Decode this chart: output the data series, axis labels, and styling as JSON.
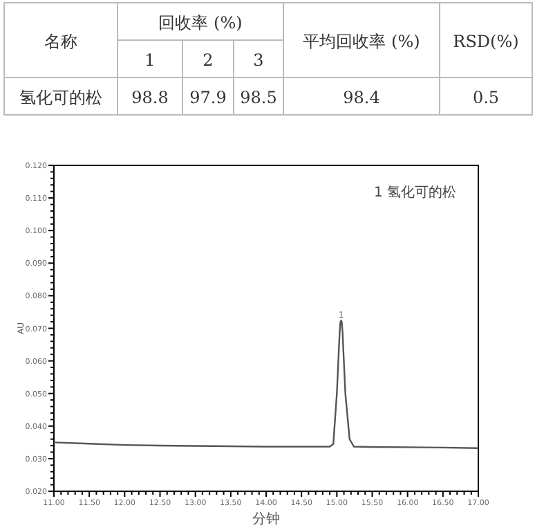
{
  "chart_data": [
    {
      "type": "other",
      "annotations": [
        "名称",
        "回收率 (%)",
        "平均回收率 (%)",
        "RSD(%)",
        "1",
        "2",
        "3",
        "氢化可的松",
        "98.8",
        "97.9",
        "98.5",
        "98.4",
        "0.5"
      ]
    },
    {
      "type": "line",
      "xlabel": "分钟",
      "ylabel": "AU",
      "xlim": [
        11,
        17
      ],
      "ylim": [
        0.02,
        0.12
      ],
      "xticks": [
        {
          "value": 11,
          "label": "11.00"
        },
        {
          "value": 11.5,
          "label": "11.50"
        },
        {
          "value": 12,
          "label": "12.00"
        },
        {
          "value": 12.5,
          "label": "12.50"
        },
        {
          "value": 13,
          "label": "13.00"
        },
        {
          "value": 13.5,
          "label": "13.50"
        },
        {
          "value": 14,
          "label": "14.00"
        },
        {
          "value": 14.5,
          "label": "14.50"
        },
        {
          "value": 15,
          "label": "15.00"
        },
        {
          "value": 15.5,
          "label": "15.50"
        },
        {
          "value": 16,
          "label": "16.00"
        },
        {
          "value": 16.5,
          "label": "16.50"
        },
        {
          "value": 17,
          "label": "17.00"
        }
      ],
      "yticks": [
        {
          "value": 0.02,
          "label": "0.020"
        },
        {
          "value": 0.03,
          "label": "0.030"
        },
        {
          "value": 0.04,
          "label": "0.040"
        },
        {
          "value": 0.05,
          "label": "0.050"
        },
        {
          "value": 0.06,
          "label": "0.060"
        },
        {
          "value": 0.07,
          "label": "0.070"
        },
        {
          "value": 0.08,
          "label": "0.080"
        },
        {
          "value": 0.09,
          "label": "0.090"
        },
        {
          "value": 0.1,
          "label": "0.100"
        },
        {
          "value": 0.11,
          "label": "0.110"
        },
        {
          "value": 0.12,
          "label": "0.120"
        }
      ],
      "grid": false,
      "marker": "none",
      "line_style": "solid",
      "x": [
        11.0,
        11.5,
        12.0,
        12.5,
        13.0,
        13.5,
        14.0,
        14.5,
        14.9,
        14.95,
        15.0,
        15.04,
        15.05,
        15.06,
        15.07,
        15.08,
        15.12,
        15.18,
        15.24,
        15.5,
        16.0,
        16.5,
        17.0
      ],
      "series": [
        {
          "color": "#555555",
          "values": [
            0.035,
            0.0346,
            0.0342,
            0.034,
            0.0339,
            0.0338,
            0.0337,
            0.0337,
            0.0337,
            0.0345,
            0.05,
            0.069,
            0.0719,
            0.0724,
            0.0719,
            0.069,
            0.05,
            0.036,
            0.0337,
            0.0336,
            0.0335,
            0.0334,
            0.0332
          ]
        }
      ],
      "annotations": [
        {
          "text": "1",
          "x": 15.06,
          "y": 0.0724
        },
        "1 氢化可的松"
      ]
    }
  ]
}
